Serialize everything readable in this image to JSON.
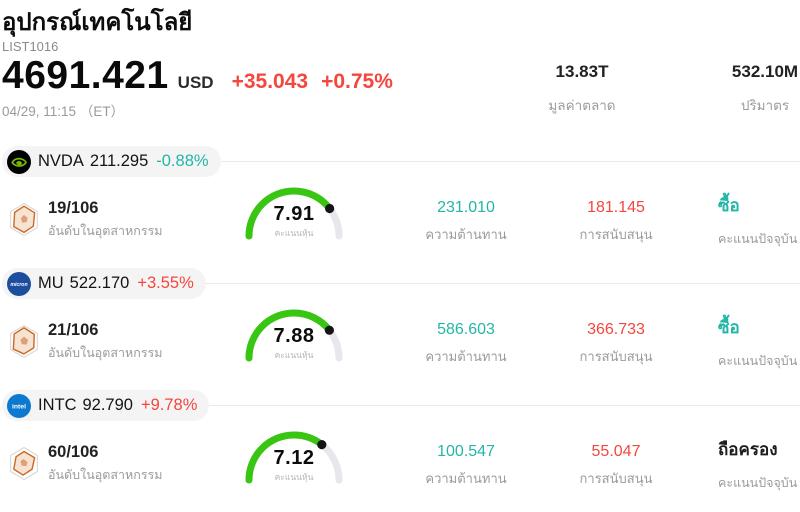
{
  "header": {
    "title": "อุปกรณ์เทคโนโลยี",
    "code": "LIST1016",
    "price": "4691.421",
    "currency": "USD",
    "change_abs": "+35.043",
    "change_pct": "+0.75%",
    "datetime": "04/29, 11:15 （ET）",
    "stats": [
      {
        "value": "13.83T",
        "label": "มูลค่าตลาด"
      },
      {
        "value": "532.10M",
        "label": "ปริมาตร"
      }
    ]
  },
  "labels": {
    "rank": "อันดับในอุตสาหกรรม",
    "gauge": "คะแนนหุ้น",
    "resistance": "ความต้านทาน",
    "support": "การสนับสนุน",
    "signal": "คะแนนปัจจุบัน"
  },
  "colors": {
    "up_red": "#f5463d",
    "down_teal": "#23b6a7",
    "gauge_green": "#38c613",
    "gauge_track": "#e7e7ee",
    "nvidia_green": "#76b900",
    "micron_blue": "#1d4e9e",
    "intel_blue": "#0b79d0"
  },
  "rows": [
    {
      "ticker": "NVDA",
      "price": "211.295",
      "change": "-0.88%",
      "direction": "down",
      "logo": "nvidia-logo",
      "logo_text": "",
      "rank": "19/106",
      "score": 7.91,
      "resistance": "231.010",
      "support": "181.145",
      "signal": "ซื้อ"
    },
    {
      "ticker": "MU",
      "price": "522.170",
      "change": "+3.55%",
      "direction": "up",
      "logo": "micron-logo",
      "logo_text": "micron",
      "rank": "21/106",
      "score": 7.88,
      "resistance": "586.603",
      "support": "366.733",
      "signal": "ซื้อ"
    },
    {
      "ticker": "INTC",
      "price": "92.790",
      "change": "+9.78%",
      "direction": "up",
      "logo": "intel-logo",
      "logo_text": "intel",
      "rank": "60/106",
      "score": 7.12,
      "resistance": "100.547",
      "support": "55.047",
      "signal": "ถือครอง"
    }
  ]
}
